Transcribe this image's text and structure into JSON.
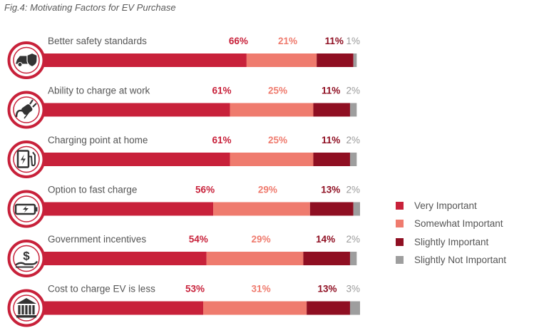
{
  "chart_data": {
    "type": "bar",
    "orientation": "horizontal",
    "stacked": true,
    "title": "Fig.4: Motivating Factors for EV Purchase",
    "categories": [
      "Better safety standards",
      "Ability to charge at work",
      "Charging point at home",
      "Option to fast charge",
      "Government incentives",
      "Cost to charge EV is less"
    ],
    "icons": [
      "car-shield-icon",
      "ev-plug-icon",
      "charging-station-icon",
      "battery-icon",
      "money-hand-icon",
      "bank-icon"
    ],
    "series": [
      {
        "name": "Very Important",
        "color": "#c8213a",
        "label_color": "#c8213a",
        "values": [
          66,
          61,
          61,
          56,
          54,
          53
        ]
      },
      {
        "name": "Somewhat Important",
        "color": "#ef7b6e",
        "label_color": "#ef7b6e",
        "values": [
          21,
          25,
          25,
          29,
          29,
          31
        ]
      },
      {
        "name": "Slightly Important",
        "color": "#8f0f22",
        "label_color": "#8f0f22",
        "values": [
          11,
          11,
          11,
          13,
          14,
          13
        ]
      },
      {
        "name": "Slightly Not Important",
        "color": "#9e9e9e",
        "label_color": "#9a9a9a",
        "values": [
          1,
          2,
          2,
          2,
          2,
          3
        ]
      }
    ],
    "value_suffix": "%",
    "legend_position": "right",
    "grid": false
  }
}
